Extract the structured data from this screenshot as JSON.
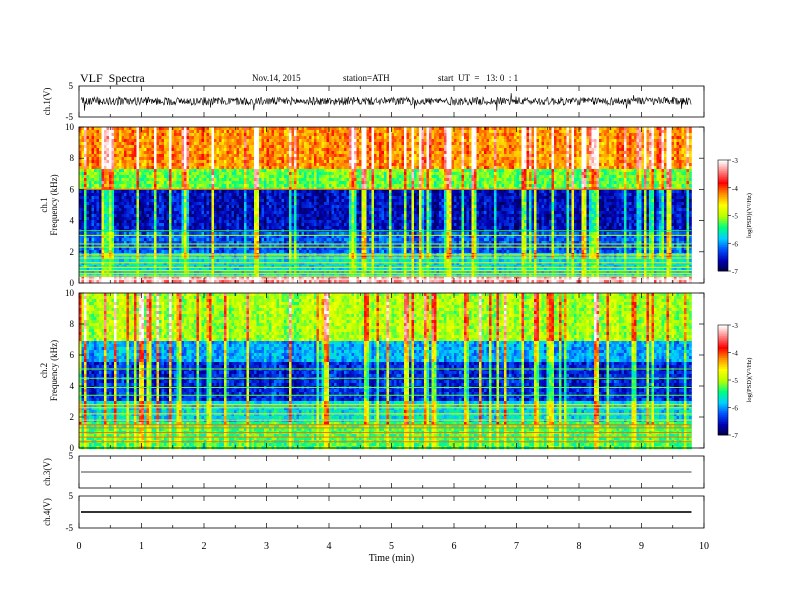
{
  "header": {
    "title": "VLF  Spectra",
    "date": "Nov.14, 2015",
    "station": "station=ATH",
    "start": "start  UT  =   13: 0  : 1"
  },
  "colors": {
    "spectrogram_scale": [
      "#00003c",
      "#0000b4",
      "#0050ff",
      "#00d0ff",
      "#00ff80",
      "#b8ff00",
      "#ffff00",
      "#ff9000",
      "#ff0000",
      "#ff8080",
      "#ffffff"
    ],
    "trace": "#000000"
  },
  "chart_data": [
    {
      "id": "ch1-waveform",
      "type": "line",
      "ylabel": "ch.1(V)",
      "ylim": [
        -5,
        5
      ],
      "y_tick_labels": [
        "5",
        "-5"
      ],
      "baseline_v": 0.1,
      "amplitude_v": 1.3,
      "spike_v": 2.0
    },
    {
      "id": "ch1-spectrogram",
      "type": "heatmap",
      "ylabel": "ch.1\nFrequency (kHz)",
      "ylim": [
        0,
        10
      ],
      "y_ticks": [
        0,
        2,
        4,
        6,
        8,
        10
      ],
      "x_extent_min": 9.8,
      "colorbar": {
        "label": "log(PSD)(V²/Hz)",
        "range": [
          -7,
          -3
        ],
        "ticks": [
          -3,
          -4,
          -5,
          -6,
          -7
        ]
      },
      "bands": [
        {
          "from_khz": 0,
          "to_khz": 0.3,
          "log_psd": -3.3
        },
        {
          "from_khz": 0.3,
          "to_khz": 2.0,
          "log_psd": -5.7
        },
        {
          "from_khz": 2.0,
          "to_khz": 3.2,
          "log_psd": -6.2
        },
        {
          "from_khz": 3.2,
          "to_khz": 6.0,
          "log_psd": -6.55
        },
        {
          "from_khz": 6.0,
          "to_khz": 7.3,
          "log_psd": -5.2
        },
        {
          "from_khz": 7.3,
          "to_khz": 10,
          "log_psd": -4.2
        }
      ],
      "lines_khz": [
        0.25,
        0.45,
        0.6,
        0.8,
        1.0,
        1.3,
        1.6,
        1.8,
        2.3,
        2.5,
        3.05,
        3.35,
        6.0
      ]
    },
    {
      "id": "ch2-spectrogram",
      "type": "heatmap",
      "ylabel": "ch.2\nFrequency (kHz)",
      "ylim": [
        0,
        10
      ],
      "y_ticks": [
        0,
        2,
        4,
        6,
        8,
        10
      ],
      "x_extent_min": 9.8,
      "colorbar": {
        "label": "log(PSD)(V²/Hz)",
        "range": [
          -7,
          -3
        ],
        "ticks": [
          -3,
          -4,
          -5,
          -6,
          -7
        ]
      },
      "bands": [
        {
          "from_khz": 0,
          "to_khz": 1.6,
          "log_psd": -5.3
        },
        {
          "from_khz": 1.6,
          "to_khz": 3.0,
          "log_psd": -5.7
        },
        {
          "from_khz": 3.0,
          "to_khz": 5.5,
          "log_psd": -6.4
        },
        {
          "from_khz": 5.5,
          "to_khz": 7.0,
          "log_psd": -5.9
        },
        {
          "from_khz": 7.0,
          "to_khz": 10,
          "log_psd": -5.0
        }
      ],
      "lines_khz": [
        0.4,
        0.7,
        1.0,
        1.3,
        1.5,
        1.8,
        2.2,
        2.6,
        2.8,
        3.4,
        3.9,
        4.5,
        5.1
      ]
    },
    {
      "id": "ch3-waveform",
      "type": "line",
      "ylabel": "ch.3(V)",
      "ylim": [
        -5,
        5
      ],
      "y_tick_labels": [
        "5"
      ],
      "baseline_v": 0,
      "amplitude_v": 0,
      "spike_v": 0
    },
    {
      "id": "ch4-waveform",
      "type": "line",
      "ylabel": "ch.4(V)",
      "ylim": [
        -5,
        5
      ],
      "y_tick_labels": [
        "5",
        "-5"
      ],
      "baseline_v": 0,
      "amplitude_v": 0.25,
      "spike_v": 0
    }
  ],
  "time_axis": {
    "xlabel": "Time  (min)",
    "xlim": [
      0,
      10
    ],
    "ticks": [
      "0",
      "1",
      "2",
      "3",
      "4",
      "5",
      "6",
      "7",
      "8",
      "9",
      "10"
    ]
  }
}
